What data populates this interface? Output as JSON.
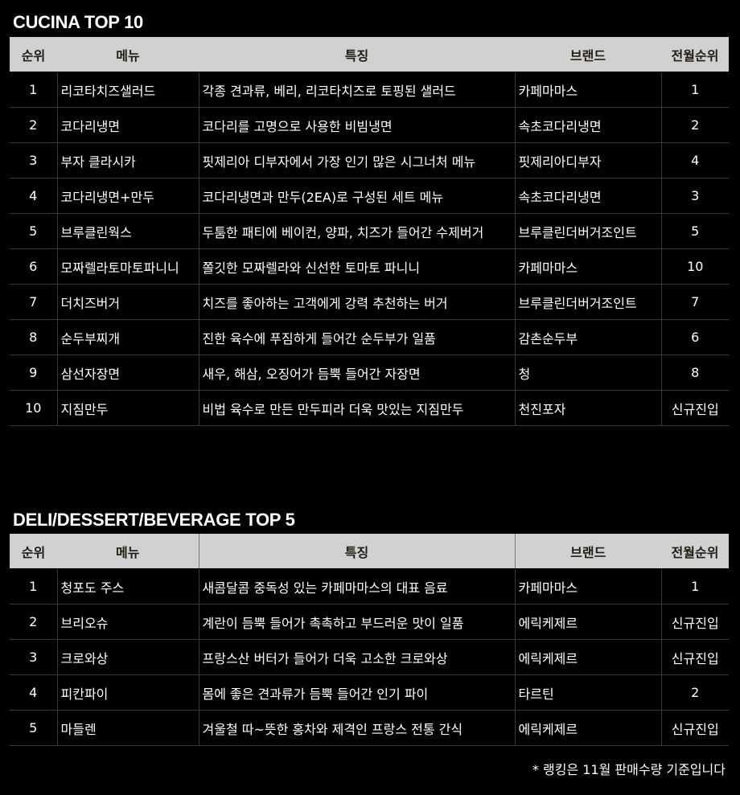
{
  "cucina": {
    "title": "CUCINA TOP 10",
    "headers": [
      "순위",
      "메뉴",
      "특징",
      "브랜드",
      "전월순위"
    ],
    "rows": [
      [
        "1",
        "리코타치즈샐러드",
        "각종 견과류, 베리, 리코타치즈로 토핑된 샐러드",
        "카페마마스",
        "1"
      ],
      [
        "2",
        "코다리냉면",
        "코다리를 고명으로 사용한 비빔냉면",
        "속초코다리냉면",
        "2"
      ],
      [
        "3",
        "부자 클라시카",
        "핏제리아 디부자에서 가장 인기 많은 시그너처 메뉴",
        "핏제리아디부자",
        "4"
      ],
      [
        "4",
        "코다리냉면+만두",
        "코다리냉면과 만두(2EA)로 구성된 세트 메뉴",
        "속초코다리냉면",
        "3"
      ],
      [
        "5",
        "브루클린웍스",
        "두툼한 패티에 베이컨, 양파, 치즈가 들어간 수제버거",
        "브루클린더버거조인트",
        "5"
      ],
      [
        "6",
        "모짜렐라토마토파니니",
        "쫄깃한 모짜렐라와 신선한 토마토 파니니",
        "카페마마스",
        "10"
      ],
      [
        "7",
        "더치즈버거",
        "치즈를 좋아하는 고객에게 강력 추천하는 버거",
        "브루클린더버거조인트",
        "7"
      ],
      [
        "8",
        "순두부찌개",
        "진한 육수에 푸짐하게 들어간 순두부가 일품",
        "감촌순두부",
        "6"
      ],
      [
        "9",
        "삼선자장면",
        "새우, 해삼, 오징어가 듬뿍 들어간 자장면",
        "청",
        "8"
      ],
      [
        "10",
        "지짐만두",
        "비법 육수로 만든 만두피라 더욱 맛있는 지짐만두",
        "천진포자",
        "신규진입"
      ]
    ]
  },
  "deli": {
    "title": "DELI/DESSERT/BEVERAGE TOP 5",
    "headers": [
      "순위",
      "메뉴",
      "특징",
      "브랜드",
      "전월순위"
    ],
    "rows": [
      [
        "1",
        "청포도 주스",
        "새콤달콤 중독성 있는 카페마마스의 대표 음료",
        "카페마마스",
        "1"
      ],
      [
        "2",
        "브리오슈",
        "계란이 듬뿍 들어가 촉촉하고 부드러운 맛이 일품",
        "에릭케제르",
        "신규진입"
      ],
      [
        "3",
        "크로와상",
        "프랑스산 버터가 들어가 더욱 고소한 크로와상",
        "에릭케제르",
        "신규진입"
      ],
      [
        "4",
        "피칸파이",
        "몸에 좋은 견과류가 듬뿍 들어간 인기 파이",
        "타르틴",
        "2"
      ],
      [
        "5",
        "마들렌",
        "겨울철 따~뜻한 홍차와 제격인 프랑스 전통 간식",
        "에릭케제르",
        "신규진입"
      ]
    ]
  },
  "footnote": "* 랭킹은 11월 판매수량 기준입니다",
  "colors": {
    "background": "#000000",
    "header_bg": "#d1d1d1",
    "header_text": "#231c10",
    "text": "#ffffff",
    "row_line": "#3a3a3a"
  }
}
